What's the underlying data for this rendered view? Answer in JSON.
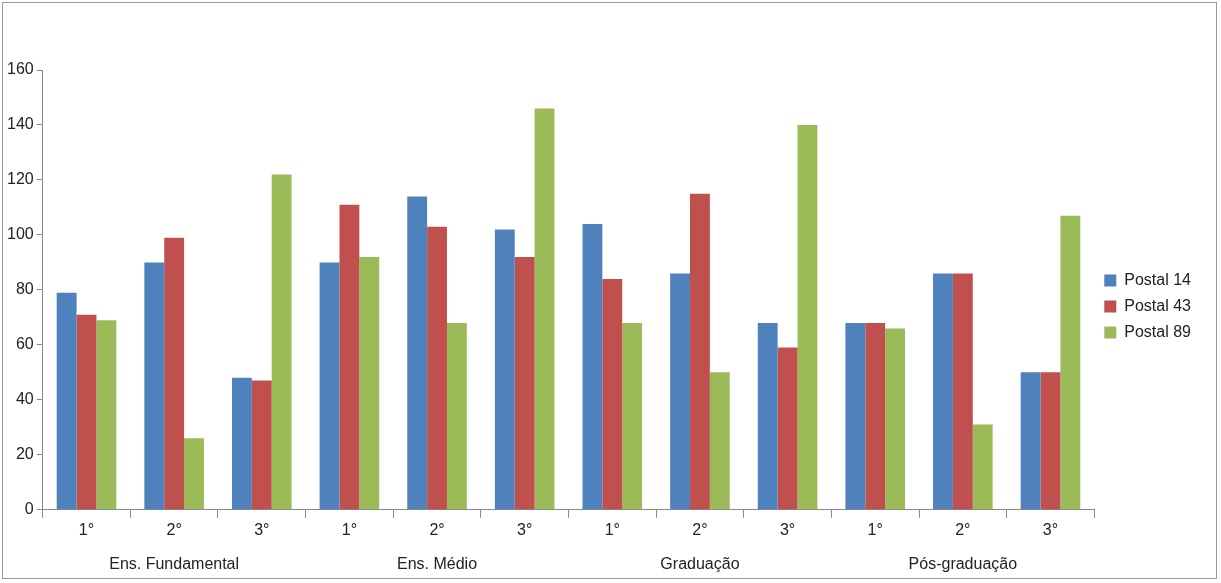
{
  "chart_data": {
    "type": "bar",
    "categories": [
      "1°",
      "2°",
      "3°",
      "1°",
      "2°",
      "3°",
      "1°",
      "2°",
      "3°",
      "1°",
      "2°",
      "3°"
    ],
    "annotations": [
      "Ens. Fundamental",
      "Ens. Médio",
      "Graduação",
      "Pós-graduação"
    ],
    "series": [
      {
        "name": "Postal 14",
        "color": "#4f81bd",
        "values": [
          79,
          90,
          48,
          90,
          114,
          102,
          104,
          86,
          68,
          68,
          86,
          50
        ]
      },
      {
        "name": "Postal 43",
        "color": "#c0504d",
        "values": [
          71,
          99,
          47,
          111,
          103,
          92,
          84,
          115,
          59,
          68,
          86,
          50
        ]
      },
      {
        "name": "Postal 89",
        "color": "#9bbb59",
        "values": [
          69,
          26,
          122,
          92,
          68,
          146,
          68,
          50,
          140,
          66,
          31,
          107
        ]
      }
    ],
    "ylim": [
      0,
      160
    ],
    "yticks": [
      0,
      20,
      40,
      60,
      80,
      100,
      120,
      140,
      160
    ],
    "grid": false,
    "legend": "right"
  }
}
